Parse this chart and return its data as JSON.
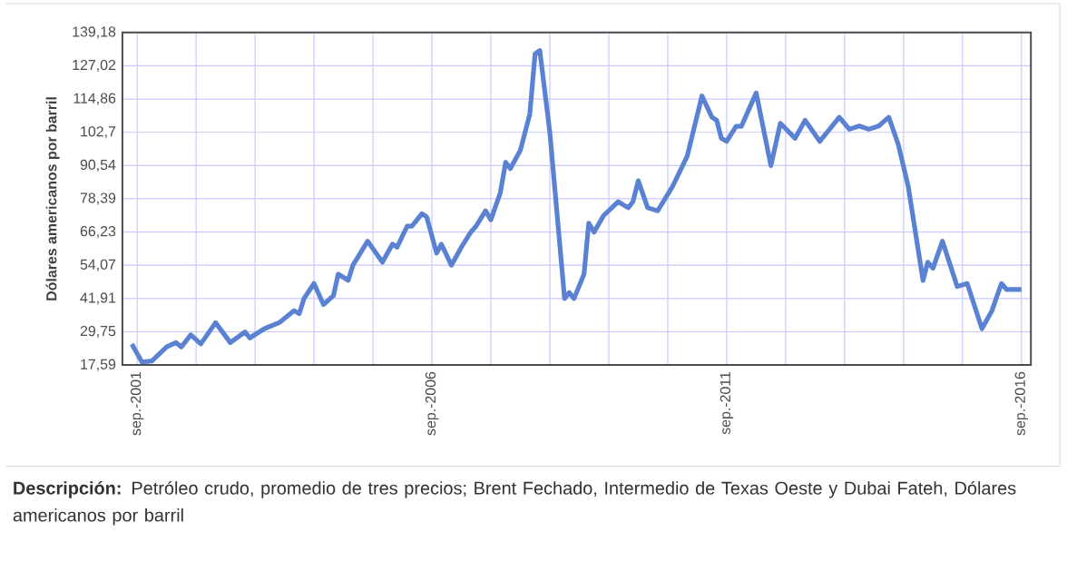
{
  "chart_data": {
    "type": "line",
    "ylabel": "Dólares americanos por barril",
    "annotations": [
      "**Descripción:** Petróleo crudo, promedio de tres precios; Brent Fechado, Intermedio de Texas Oeste y Dubai Fateh, Dólares americanos por barril"
    ],
    "x": [
      "2001-08",
      "2001-10",
      "2001-12",
      "2002-03",
      "2002-05",
      "2002-06",
      "2002-08",
      "2002-10",
      "2003-01",
      "2003-04",
      "2003-07",
      "2003-08",
      "2003-11",
      "2004-02",
      "2004-05",
      "2004-06",
      "2004-07",
      "2004-09",
      "2004-11",
      "2005-01",
      "2005-02",
      "2005-04",
      "2005-05",
      "2005-08",
      "2005-11",
      "2006-01",
      "2006-02",
      "2006-04",
      "2006-05",
      "2006-07",
      "2006-08",
      "2006-10",
      "2006-11",
      "2007-01",
      "2007-03",
      "2007-05",
      "2007-06",
      "2007-08",
      "2007-09",
      "2007-11",
      "2007-12",
      "2008-01",
      "2008-03",
      "2008-05",
      "2008-06",
      "2008-07",
      "2008-09",
      "2008-12",
      "2009-01",
      "2009-02",
      "2009-04",
      "2009-05",
      "2009-06",
      "2009-08",
      "2009-11",
      "2010-01",
      "2010-02",
      "2010-03",
      "2010-05",
      "2010-07",
      "2010-10",
      "2011-01",
      "2011-04",
      "2011-06",
      "2011-07",
      "2011-08",
      "2011-09",
      "2011-11",
      "2011-12",
      "2012-03",
      "2012-06",
      "2012-08",
      "2012-11",
      "2013-01",
      "2013-04",
      "2013-08",
      "2013-10",
      "2013-12",
      "2014-02",
      "2014-04",
      "2014-06",
      "2014-08",
      "2014-10",
      "2015-01",
      "2015-02",
      "2015-03",
      "2015-05",
      "2015-08",
      "2015-10",
      "2016-01",
      "2016-03",
      "2016-05",
      "2016-06",
      "2016-09"
    ],
    "series": [
      {
        "color": "#5b82d2",
        "values": [
          25.3,
          18.7,
          19.1,
          24.2,
          25.8,
          24.2,
          28.6,
          25.3,
          33.1,
          25.8,
          29.7,
          27.5,
          30.9,
          33.1,
          37.5,
          36.4,
          41.9,
          47.4,
          39.7,
          43.0,
          50.8,
          48.6,
          54.1,
          62.9,
          55.2,
          61.8,
          60.7,
          68.4,
          68.4,
          72.9,
          71.8,
          58.5,
          61.8,
          54.1,
          60.7,
          66.2,
          68.4,
          74.0,
          70.7,
          80.6,
          91.7,
          89.4,
          96.1,
          109.3,
          131.4,
          132.6,
          102.7,
          41.9,
          44.1,
          41.9,
          50.8,
          69.5,
          66.2,
          72.2,
          77.3,
          75.1,
          77.3,
          85.0,
          75.1,
          74.0,
          82.8,
          93.9,
          116.0,
          108.2,
          107.1,
          100.5,
          99.4,
          104.9,
          104.9,
          117.1,
          90.5,
          106.0,
          100.5,
          107.1,
          99.4,
          108.2,
          103.8,
          105.0,
          103.8,
          105.0,
          108.2,
          98.3,
          82.8,
          48.5,
          55.2,
          53.0,
          62.9,
          46.3,
          47.4,
          30.9,
          37.5,
          47.4,
          45.2,
          45.2
        ]
      }
    ],
    "xlim": [
      "2001-06",
      "2016-11"
    ],
    "xticks": [
      {
        "value": "2001-09",
        "label": "sep.-2001"
      },
      {
        "value": "2002-09",
        "label": null
      },
      {
        "value": "2003-09",
        "label": null
      },
      {
        "value": "2004-09",
        "label": null
      },
      {
        "value": "2005-09",
        "label": null
      },
      {
        "value": "2006-09",
        "label": "sep.-2006"
      },
      {
        "value": "2007-09",
        "label": null
      },
      {
        "value": "2008-09",
        "label": null
      },
      {
        "value": "2009-09",
        "label": null
      },
      {
        "value": "2010-09",
        "label": null
      },
      {
        "value": "2011-09",
        "label": "sep.-2011"
      },
      {
        "value": "2012-09",
        "label": null
      },
      {
        "value": "2013-09",
        "label": null
      },
      {
        "value": "2014-09",
        "label": null
      },
      {
        "value": "2015-09",
        "label": null
      },
      {
        "value": "2016-09",
        "label": "sep.-2016"
      }
    ],
    "ylim": [
      17.59,
      139.18
    ],
    "yticks": [
      {
        "value": 17.59,
        "label": "17,59"
      },
      {
        "value": 29.75,
        "label": "29,75"
      },
      {
        "value": 41.91,
        "label": "41,91"
      },
      {
        "value": 54.07,
        "label": "54,07"
      },
      {
        "value": 66.23,
        "label": "66,23"
      },
      {
        "value": 78.39,
        "label": "78,39"
      },
      {
        "value": 90.54,
        "label": "90,54"
      },
      {
        "value": 102.7,
        "label": "102,7"
      },
      {
        "value": 114.86,
        "label": "114,86"
      },
      {
        "value": 127.02,
        "label": "127,02"
      },
      {
        "value": 139.18,
        "label": "139,18"
      }
    ],
    "grid": true,
    "marker": "none",
    "line_style": "solid"
  }
}
